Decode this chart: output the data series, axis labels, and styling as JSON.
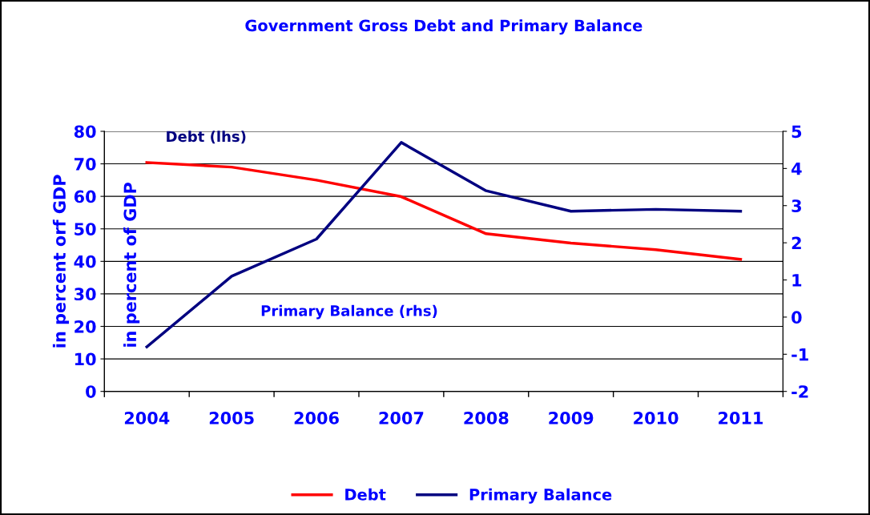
{
  "chart_data": {
    "type": "line",
    "title": "Government Gross Debt and Primary Balance",
    "ylabel": "in percent orf GDP",
    "categories": [
      "2004",
      "2005",
      "2006",
      "2007",
      "2008",
      "2009",
      "2010",
      "2011"
    ],
    "series": [
      {
        "name": "Debt",
        "color": "#ff0000",
        "values": [
          70.4,
          69.0,
          65.0,
          59.9,
          48.5,
          45.6,
          43.6,
          40.6
        ]
      },
      {
        "name": "Primary Balance",
        "color": "#000080",
        "axis": "y2",
        "values": [
          -0.8,
          1.1,
          2.1,
          4.7,
          3.4,
          2.85,
          2.9,
          2.85
        ]
      }
    ],
    "ylim": [
      0,
      80
    ],
    "yticks": [
      0,
      10,
      20,
      30,
      40,
      50,
      60,
      70,
      80
    ],
    "y2lim": [
      -2,
      5
    ],
    "y2ticks": [
      -2,
      -1,
      0,
      1,
      2,
      3,
      4,
      5
    ],
    "annotations": [
      "Debt (lhs)",
      "Primary Balance (rhs)",
      "in percent of GDP"
    ],
    "grid": "y",
    "legend": "bottom",
    "marker": "none",
    "line_style": "solid"
  }
}
